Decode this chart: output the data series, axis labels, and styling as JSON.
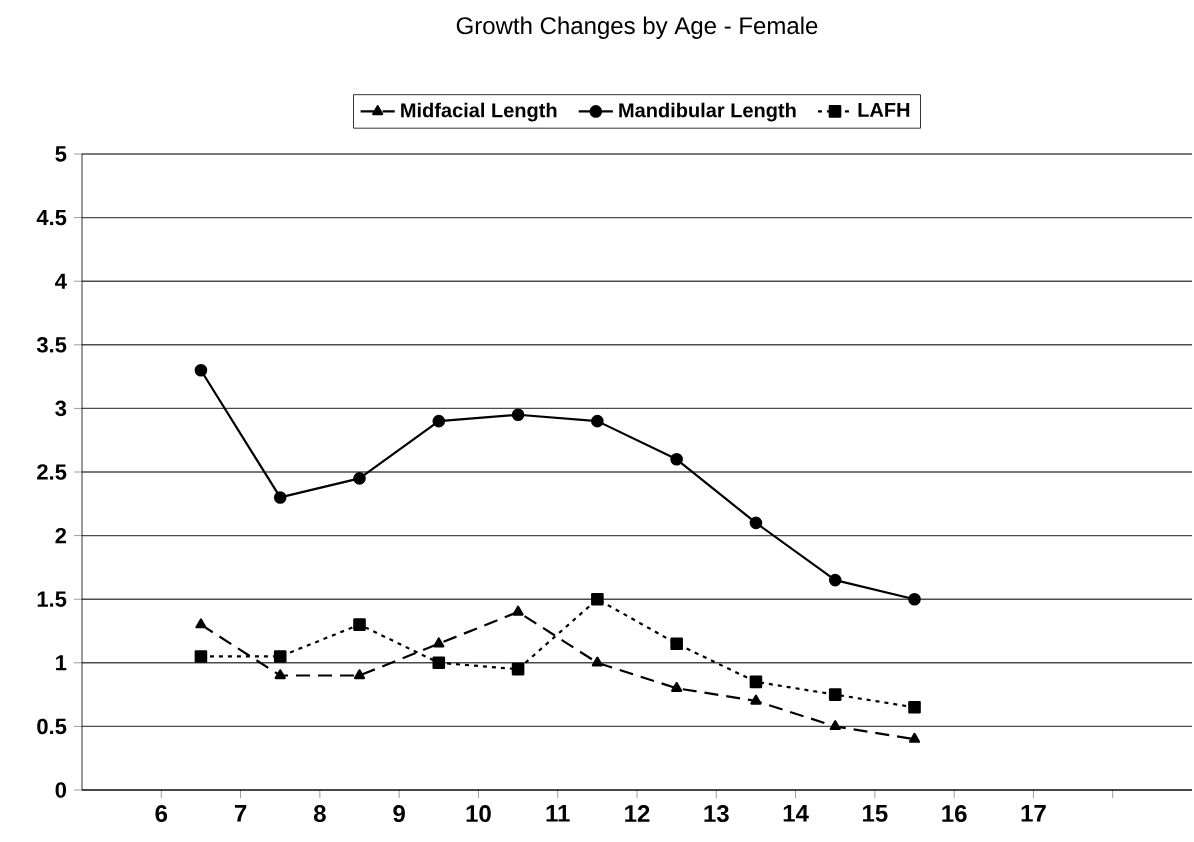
{
  "chart_data": {
    "type": "line",
    "title": "Growth Changes by Age - Female",
    "x": [
      6.5,
      7.5,
      8.5,
      9.5,
      10.5,
      11.5,
      12.5,
      13.5,
      14.5,
      15.5
    ],
    "series": [
      {
        "name": "Midfacial Length",
        "color": "#000000",
        "marker": "triangle",
        "line_style": "dashed",
        "values": [
          1.3,
          0.9,
          0.9,
          1.15,
          1.4,
          1.0,
          0.8,
          0.7,
          0.5,
          0.4
        ]
      },
      {
        "name": "Mandibular Length",
        "color": "#000000",
        "marker": "circle",
        "line_style": "solid",
        "values": [
          3.3,
          2.3,
          2.45,
          2.9,
          2.95,
          2.9,
          2.6,
          2.1,
          1.65,
          1.5
        ]
      },
      {
        "name": "LAFH",
        "color": "#000000",
        "marker": "square",
        "line_style": "dotted",
        "values": [
          1.05,
          1.05,
          1.3,
          1.0,
          0.95,
          1.5,
          1.15,
          0.85,
          0.75,
          0.65
        ]
      }
    ],
    "xlim": [
      5,
      19
    ],
    "xticks": [
      6,
      7,
      8,
      9,
      10,
      11,
      12,
      13,
      14,
      15,
      16,
      17,
      {
        "value": 18,
        "label": null
      }
    ],
    "ylim": [
      0,
      5
    ],
    "yticks": [
      0,
      0.5,
      1,
      1.5,
      2,
      2.5,
      3,
      3.5,
      4,
      4.5,
      5
    ],
    "grid": "y",
    "legend": "top"
  }
}
